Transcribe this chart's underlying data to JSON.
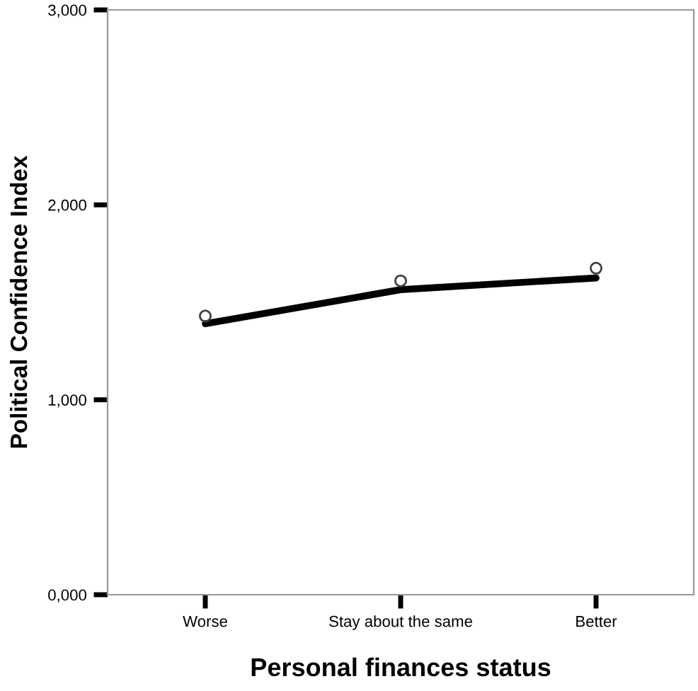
{
  "chart_data": {
    "type": "line",
    "xlabel": "Personal finances status",
    "ylabel": "Political Confidence Index",
    "categories": [
      "Worse",
      "Stay about the same",
      "Better"
    ],
    "series": [
      {
        "color": "#000000",
        "values": [
          1390,
          1565,
          1625
        ],
        "marker": "none"
      },
      {
        "type": "scatter",
        "color": "#404040",
        "values": [
          1430,
          1610,
          1675
        ],
        "marker": "circle"
      }
    ],
    "ylim": [
      0,
      3000
    ],
    "yticks": [
      {
        "value": 0,
        "label": "0,000"
      },
      {
        "value": 1000,
        "label": "1,000"
      },
      {
        "value": 2000,
        "label": "2,000"
      },
      {
        "value": 3000,
        "label": "3,000"
      }
    ],
    "grid": false,
    "legend": false
  }
}
